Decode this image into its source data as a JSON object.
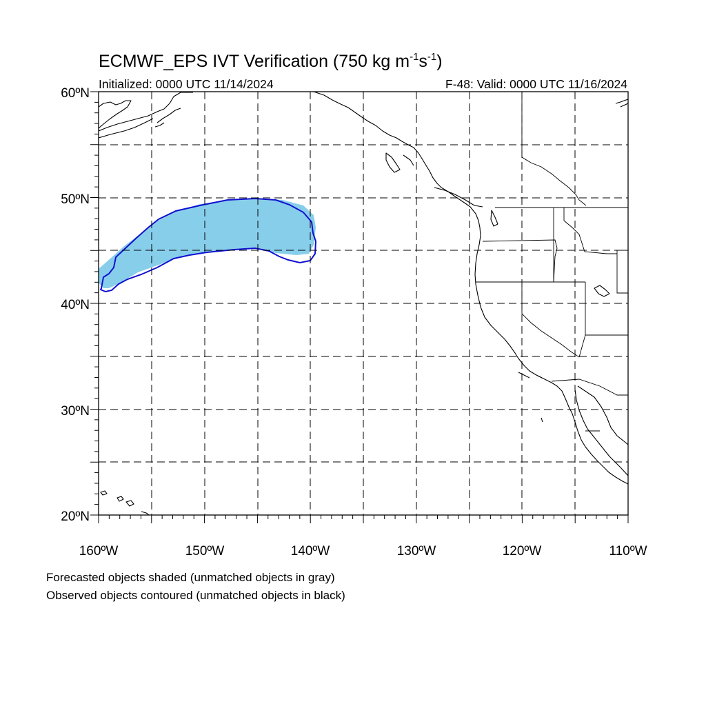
{
  "title_main": "ECMWF_EPS IVT Verification (750 kg m",
  "title_sup1": "-1",
  "title_mid": "s",
  "title_sup2": "-1",
  "title_end": ")",
  "initialized": "Initialized: 0000 UTC 11/14/2024",
  "valid": "F-48: Valid: 0000 UTC 11/16/2024",
  "lat_labels": [
    "60ºN",
    "50ºN",
    "40ºN",
    "30ºN",
    "20ºN"
  ],
  "lon_labels": [
    "160ºW",
    "150ºW",
    "140ºW",
    "130ºW",
    "120ºW",
    "110ºW"
  ],
  "note_forecast": "Forecasted objects shaded (unmatched objects in gray)",
  "note_observed": "Observed objects contoured (unmatched objects in black)",
  "map": {
    "lon_range": [
      -160,
      -110
    ],
    "lat_range": [
      20,
      60
    ],
    "grid_lon_step": 5,
    "grid_lat_step": 5,
    "grid_style": "dashed",
    "projection": "cylindrical equidistant"
  },
  "colors": {
    "forecast_fill": "#87ceeb",
    "observed_contour": "#1010d0",
    "coastline": "#000000"
  },
  "objects": [
    {
      "kind": "forecast",
      "matched": true,
      "description_region_lon": [
        -160,
        -139.5
      ],
      "description_region_lat": [
        41.5,
        50
      ]
    },
    {
      "kind": "observed",
      "matched": true,
      "description_region_lon": [
        -160,
        -139.5
      ],
      "description_region_lat": [
        41,
        50
      ]
    }
  ]
}
